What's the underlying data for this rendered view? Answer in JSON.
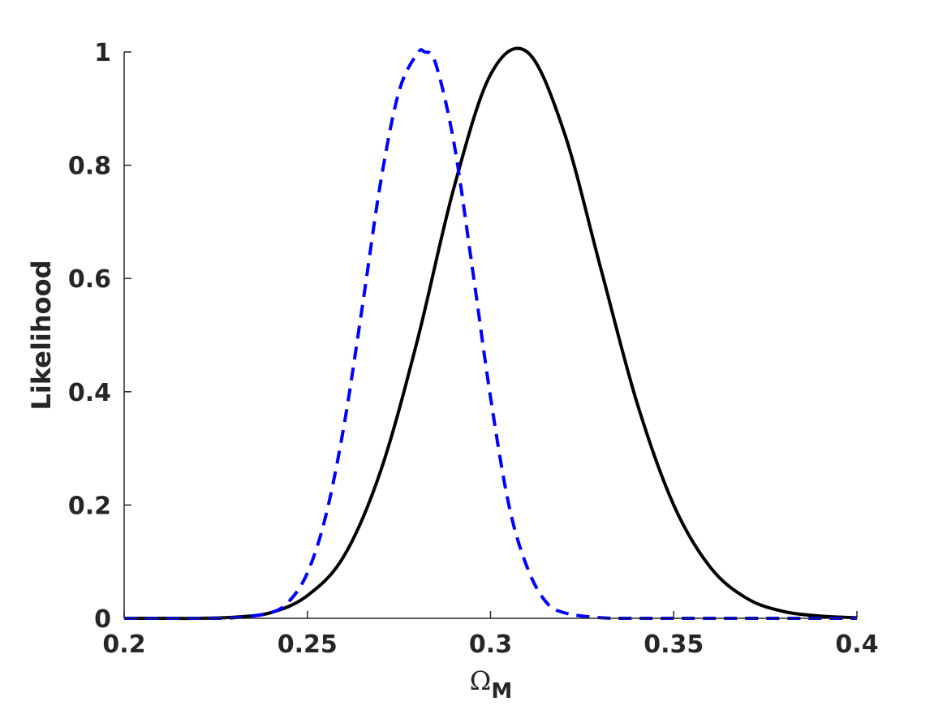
{
  "chart_data": {
    "type": "line",
    "xlabel": "Ω",
    "xlabel_subscript": "M",
    "ylabel": "Likelihood",
    "xlim": [
      0.2,
      0.4
    ],
    "ylim": [
      0,
      1
    ],
    "xticks": [
      0.2,
      0.25,
      0.3,
      0.35,
      0.4
    ],
    "xtick_labels": [
      "0.2",
      "0.25",
      "0.3",
      "0.35",
      "0.4"
    ],
    "yticks": [
      0,
      0.2,
      0.4,
      0.6,
      0.8,
      1
    ],
    "ytick_labels": [
      "0",
      "0.2",
      "0.4",
      "0.6",
      "0.8",
      "1"
    ],
    "grid": false,
    "series": [
      {
        "color": "#000000",
        "line_style": "solid",
        "x": [
          0.2,
          0.21,
          0.22,
          0.23,
          0.24,
          0.25,
          0.26,
          0.27,
          0.28,
          0.29,
          0.3,
          0.31,
          0.32,
          0.33,
          0.34,
          0.35,
          0.36,
          0.37,
          0.38,
          0.39,
          0.4
        ],
        "values": [
          0.0,
          0.0,
          0.0,
          0.002,
          0.01,
          0.04,
          0.11,
          0.26,
          0.49,
          0.76,
          0.96,
          1.0,
          0.86,
          0.62,
          0.38,
          0.2,
          0.09,
          0.035,
          0.012,
          0.004,
          0.001
        ]
      },
      {
        "color": "#0000ff",
        "line_style": "dashed",
        "x": [
          0.2,
          0.21,
          0.22,
          0.23,
          0.24,
          0.245,
          0.25,
          0.255,
          0.26,
          0.265,
          0.27,
          0.275,
          0.28,
          0.282,
          0.285,
          0.29,
          0.295,
          0.3,
          0.305,
          0.31,
          0.315,
          0.32,
          0.33,
          0.34,
          0.35,
          0.4
        ],
        "values": [
          0.0,
          0.0,
          0.0,
          0.001,
          0.01,
          0.03,
          0.08,
          0.18,
          0.34,
          0.55,
          0.77,
          0.93,
          0.997,
          1.0,
          0.98,
          0.84,
          0.62,
          0.39,
          0.2,
          0.09,
          0.03,
          0.01,
          0.001,
          0.0,
          0.0,
          0.0
        ]
      }
    ]
  }
}
